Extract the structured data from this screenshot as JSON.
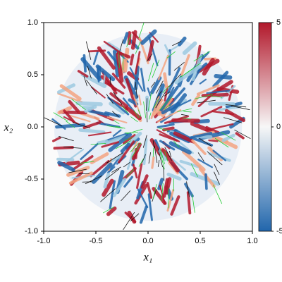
{
  "chart_data": {
    "type": "heatmap",
    "xlabel": "x₁",
    "ylabel": "x₂",
    "xlim": [
      -1,
      1
    ],
    "ylim": [
      -1,
      1
    ],
    "xticks": [
      {
        "value": -1,
        "label": "-1.0"
      },
      {
        "value": -0.5,
        "label": "-0.5"
      },
      {
        "value": 0,
        "label": "0.0"
      },
      {
        "value": 0.5,
        "label": "0.5"
      },
      {
        "value": 1,
        "label": "1.0"
      }
    ],
    "yticks": [
      {
        "value": -1,
        "label": "-1.0"
      },
      {
        "value": -0.5,
        "label": "-0.5"
      },
      {
        "value": 0,
        "label": "0.0"
      },
      {
        "value": 0.5,
        "label": "0.5"
      },
      {
        "value": 1,
        "label": "1.0"
      }
    ],
    "clim": [
      -5,
      5
    ],
    "cticks": [
      5,
      0,
      -5
    ],
    "colormap": [
      "#2166ac",
      "#f7f7f7",
      "#b2182b"
    ]
  }
}
